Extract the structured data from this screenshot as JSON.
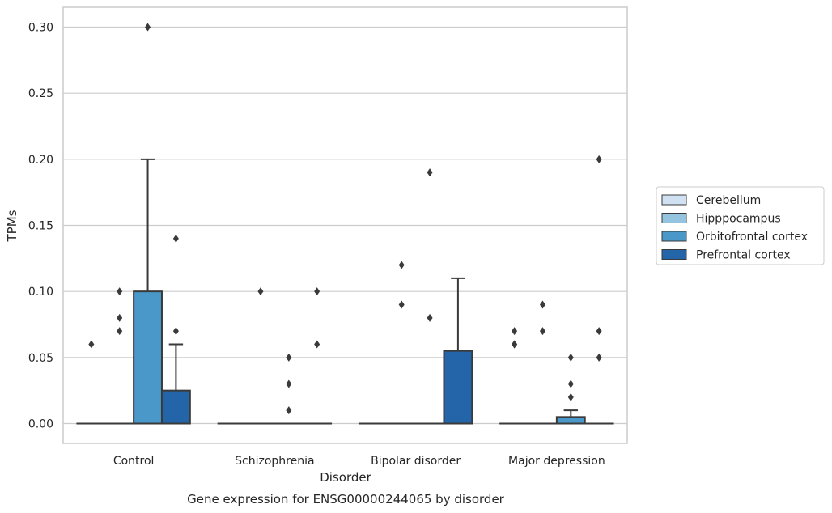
{
  "chart_data": {
    "type": "box",
    "title": "",
    "caption": "Gene expression for ENSG00000244065 by disorder",
    "xlabel": "Disorder",
    "ylabel": "TPMs",
    "ylim": [
      -0.015,
      0.315
    ],
    "yticks": [
      "0.00",
      "0.05",
      "0.10",
      "0.15",
      "0.20",
      "0.25",
      "0.30"
    ],
    "grid": "horizontal",
    "legend_position": "right",
    "categories": [
      "Control",
      "Schizophrenia",
      "Bipolar disorder",
      "Major depression"
    ],
    "series": [
      {
        "name": "Cerebellum",
        "color": "#d0e1f2",
        "boxes": [
          {
            "q1": 0,
            "median": 0,
            "q3": 0,
            "whisker_low": 0,
            "whisker_high": 0,
            "outliers": [
              0.06
            ]
          },
          {
            "q1": 0,
            "median": 0,
            "q3": 0,
            "whisker_low": 0,
            "whisker_high": 0,
            "outliers": []
          },
          {
            "q1": 0,
            "median": 0,
            "q3": 0,
            "whisker_low": 0,
            "whisker_high": 0,
            "outliers": []
          },
          {
            "q1": 0,
            "median": 0,
            "q3": 0,
            "whisker_low": 0,
            "whisker_high": 0,
            "outliers": [
              0.06,
              0.06,
              0.07
            ]
          }
        ]
      },
      {
        "name": "Hipppocampus",
        "color": "#94c4df",
        "boxes": [
          {
            "q1": 0,
            "median": 0,
            "q3": 0,
            "whisker_low": 0,
            "whisker_high": 0,
            "outliers": [
              0.07,
              0.08,
              0.1
            ]
          },
          {
            "q1": 0,
            "median": 0,
            "q3": 0,
            "whisker_low": 0,
            "whisker_high": 0,
            "outliers": [
              0.1
            ]
          },
          {
            "q1": 0,
            "median": 0,
            "q3": 0,
            "whisker_low": 0,
            "whisker_high": 0,
            "outliers": [
              0.09,
              0.12
            ]
          },
          {
            "q1": 0,
            "median": 0,
            "q3": 0,
            "whisker_low": 0,
            "whisker_high": 0,
            "outliers": [
              0.07,
              0.09
            ]
          }
        ]
      },
      {
        "name": "Orbitofrontal cortex",
        "color": "#4a98c9",
        "boxes": [
          {
            "q1": 0,
            "median": 0,
            "q3": 0.1,
            "whisker_low": 0,
            "whisker_high": 0.2,
            "outliers": [
              0.3
            ]
          },
          {
            "q1": 0,
            "median": 0,
            "q3": 0,
            "whisker_low": 0,
            "whisker_high": 0,
            "outliers": [
              0.01,
              0.03,
              0.05
            ]
          },
          {
            "q1": 0,
            "median": 0,
            "q3": 0,
            "whisker_low": 0,
            "whisker_high": 0,
            "outliers": [
              0.08,
              0.19
            ]
          },
          {
            "q1": 0,
            "median": 0,
            "q3": 0.005,
            "whisker_low": 0,
            "whisker_high": 0.01,
            "outliers": [
              0.02,
              0.03,
              0.05
            ]
          }
        ]
      },
      {
        "name": "Prefrontal cortex",
        "color": "#2464a8",
        "boxes": [
          {
            "q1": 0,
            "median": 0,
            "q3": 0.025,
            "whisker_low": 0,
            "whisker_high": 0.06,
            "outliers": [
              0.07,
              0.14
            ]
          },
          {
            "q1": 0,
            "median": 0,
            "q3": 0,
            "whisker_low": 0,
            "whisker_high": 0,
            "outliers": [
              0.06,
              0.1
            ]
          },
          {
            "q1": 0,
            "median": 0,
            "q3": 0.055,
            "whisker_low": 0,
            "whisker_high": 0.11,
            "outliers": []
          },
          {
            "q1": 0,
            "median": 0,
            "q3": 0,
            "whisker_low": 0,
            "whisker_high": 0,
            "outliers": [
              0.05,
              0.07,
              0.2
            ]
          }
        ]
      }
    ]
  }
}
